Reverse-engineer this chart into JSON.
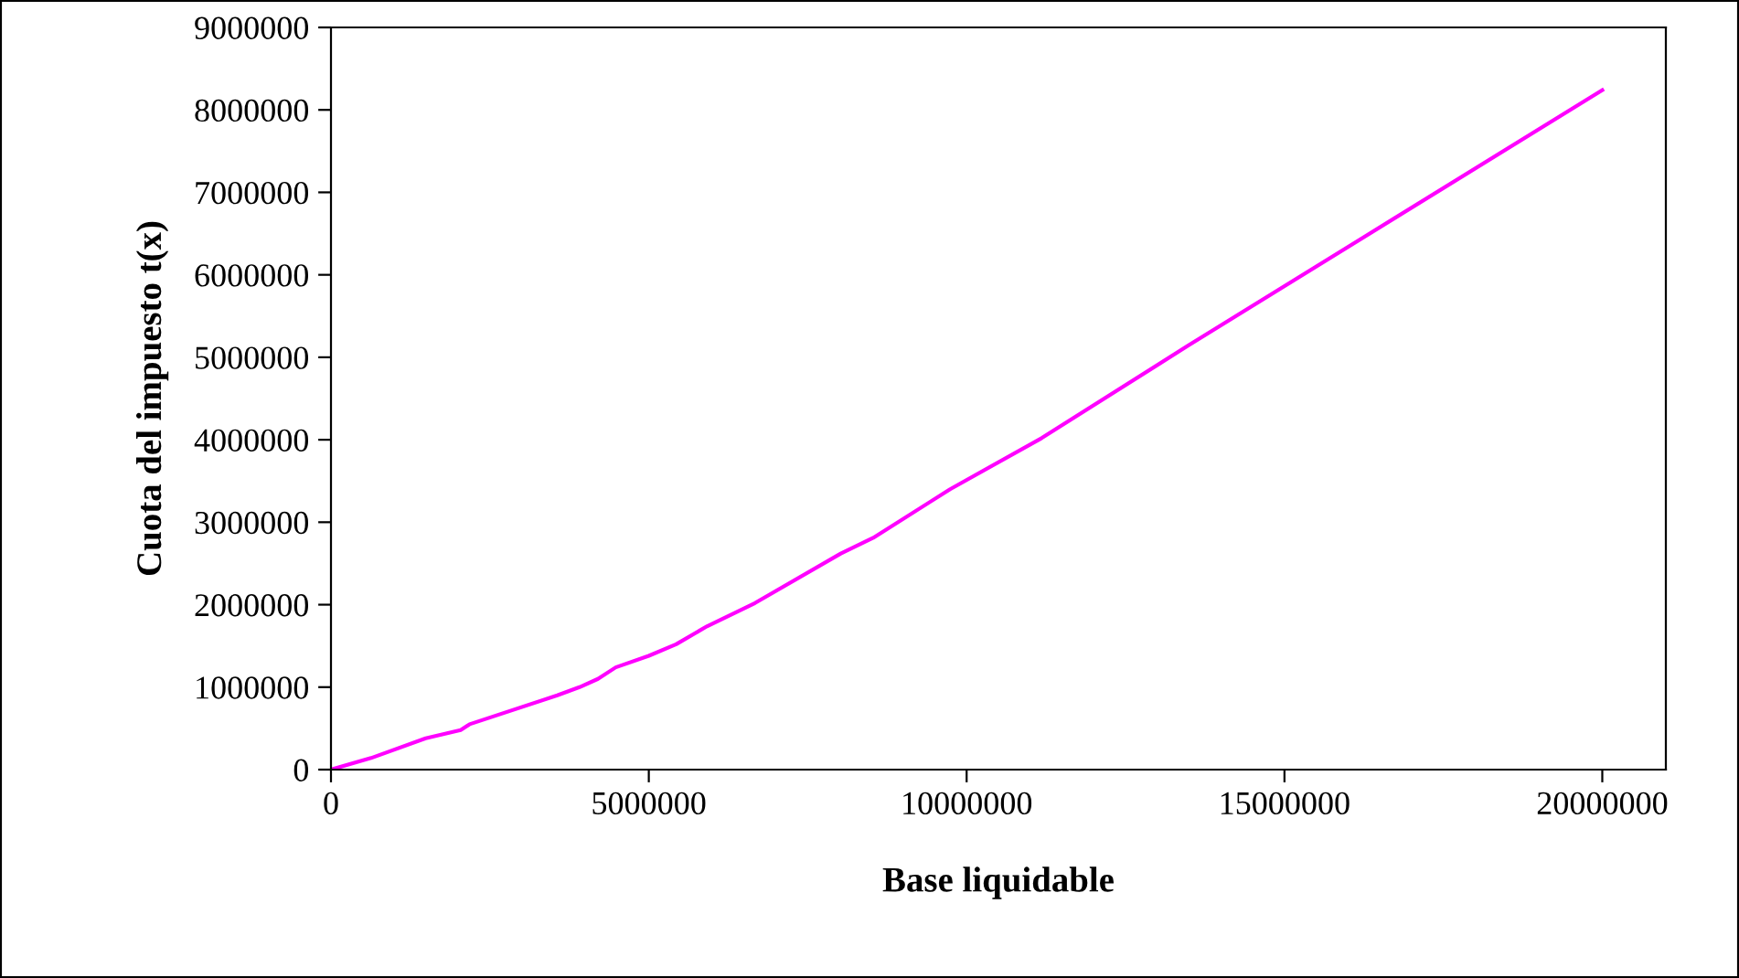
{
  "chart_data": {
    "type": "line",
    "xlabel": "Base liquidable",
    "ylabel": "Cuota del impuesto t(x)",
    "series": [
      {
        "color": "#ff00ff",
        "x": [
          0,
          630000,
          1490000,
          2040000,
          2180000,
          3560000,
          3910000,
          4200000,
          4480000,
          5000000,
          5430000,
          5920000,
          6670000,
          8020000,
          8530000,
          9740000,
          11180000,
          13480000,
          20000000
        ],
        "values": [
          0,
          140000,
          380000,
          480000,
          550000,
          900000,
          1000000,
          1100000,
          1240000,
          1380000,
          1520000,
          1740000,
          2020000,
          2620000,
          2810000,
          3400000,
          4020000,
          5140000,
          8240000
        ]
      }
    ],
    "xlim": [
      0,
      21000000
    ],
    "xticks": [
      0,
      5000000,
      10000000,
      15000000,
      20000000
    ],
    "ylim": [
      0,
      9000000
    ],
    "yticks": [
      0,
      1000000,
      2000000,
      3000000,
      4000000,
      5000000,
      6000000,
      7000000,
      8000000,
      9000000
    ],
    "grid": false,
    "legend": false,
    "marker": "none",
    "line_style": "solid"
  }
}
